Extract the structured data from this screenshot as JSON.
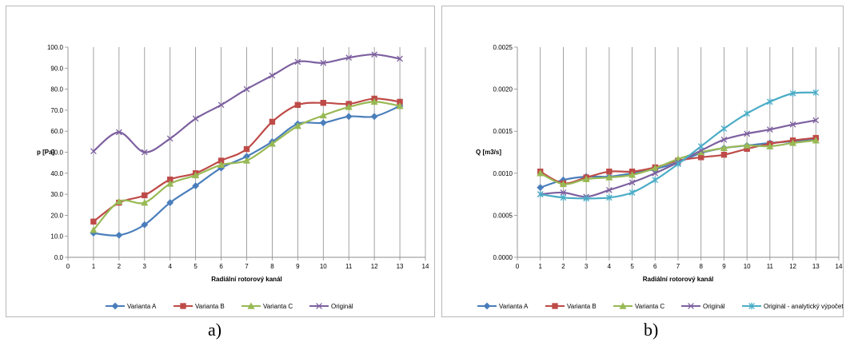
{
  "panels": {
    "a_label": "a)",
    "b_label": "b)"
  },
  "chart_data": [
    {
      "type": "line",
      "xlabel": "Radiální rotorový kanál",
      "ylabel": "p [Pa]",
      "xlim": [
        0,
        14
      ],
      "ylim": [
        0,
        100
      ],
      "x_ticks": [
        "0",
        "1",
        "2",
        "3",
        "4",
        "5",
        "6",
        "7",
        "8",
        "9",
        "10",
        "11",
        "12",
        "13",
        "14"
      ],
      "y_ticks": [
        "0.0",
        "10.0",
        "20.0",
        "30.0",
        "40.0",
        "50.0",
        "60.0",
        "70.0",
        "80.0",
        "90.0",
        "100.0"
      ],
      "grid": "vertical",
      "legend_position": "bottom",
      "x": [
        1,
        2,
        3,
        4,
        5,
        6,
        7,
        8,
        9,
        10,
        11,
        12,
        13
      ],
      "series": [
        {
          "name": "Varianta A",
          "color": "#4a7ebb",
          "marker": "diamond",
          "values": [
            11.5,
            10.5,
            15.5,
            26.0,
            34.0,
            42.5,
            48.0,
            55.0,
            63.5,
            64.0,
            67.0,
            67.0,
            72.0
          ]
        },
        {
          "name": "Varianta B",
          "color": "#be4b48",
          "marker": "square",
          "values": [
            17.0,
            26.0,
            29.5,
            37.0,
            40.0,
            46.0,
            51.5,
            64.5,
            72.5,
            73.5,
            73.0,
            75.5,
            74.0
          ]
        },
        {
          "name": "Varianta C",
          "color": "#98b954",
          "marker": "triangle",
          "values": [
            13.0,
            26.5,
            26.0,
            35.0,
            39.0,
            44.0,
            46.0,
            54.0,
            62.5,
            67.5,
            71.5,
            74.0,
            72.0
          ]
        },
        {
          "name": "Originál",
          "color": "#7d60a0",
          "marker": "x",
          "values": [
            50.5,
            59.5,
            50.0,
            56.5,
            66.0,
            72.5,
            80.0,
            86.5,
            93.0,
            92.5,
            95.0,
            96.5,
            94.5
          ]
        }
      ]
    },
    {
      "type": "line",
      "xlabel": "Radiální rotorový kanál",
      "ylabel": "Q [m3/s]",
      "xlim": [
        0,
        14
      ],
      "ylim": [
        0,
        0.0025
      ],
      "x_ticks": [
        "0",
        "1",
        "2",
        "3",
        "4",
        "5",
        "6",
        "7",
        "8",
        "9",
        "10",
        "11",
        "12",
        "13",
        "14"
      ],
      "y_ticks": [
        "0.0000",
        "0.0005",
        "0.0010",
        "0.0015",
        "0.0020",
        "0.0025"
      ],
      "grid": "vertical",
      "legend_position": "bottom",
      "x": [
        1,
        2,
        3,
        4,
        5,
        6,
        7,
        8,
        9,
        10,
        11,
        12,
        13
      ],
      "series": [
        {
          "name": "Varianta A",
          "color": "#4a7ebb",
          "marker": "diamond",
          "values": [
            0.00083,
            0.00092,
            0.00096,
            0.00096,
            0.001,
            0.00105,
            0.00113,
            0.00124,
            0.0013,
            0.00133,
            0.00136,
            0.00138,
            0.00141
          ]
        },
        {
          "name": "Varianta B",
          "color": "#be4b48",
          "marker": "square",
          "values": [
            0.00102,
            0.00088,
            0.00095,
            0.00102,
            0.00102,
            0.00107,
            0.00115,
            0.00119,
            0.00122,
            0.00129,
            0.00135,
            0.00139,
            0.00142
          ]
        },
        {
          "name": "Varianta C",
          "color": "#98b954",
          "marker": "triangle",
          "values": [
            0.001,
            0.00087,
            0.00093,
            0.00095,
            0.00098,
            0.00106,
            0.00117,
            0.00125,
            0.0013,
            0.00133,
            0.00132,
            0.00136,
            0.00139
          ]
        },
        {
          "name": "Originál",
          "color": "#7d60a0",
          "marker": "x",
          "values": [
            0.00075,
            0.00077,
            0.00072,
            0.0008,
            0.00089,
            0.001,
            0.00113,
            0.00127,
            0.0014,
            0.00147,
            0.00152,
            0.00158,
            0.00163
          ]
        },
        {
          "name": "Originál - analytický výpočet",
          "color": "#4bacc6",
          "marker": "star",
          "values": [
            0.00075,
            0.00071,
            0.0007,
            0.00071,
            0.00077,
            0.00092,
            0.00111,
            0.00132,
            0.00153,
            0.00171,
            0.00185,
            0.00195,
            0.00196
          ]
        }
      ]
    }
  ]
}
